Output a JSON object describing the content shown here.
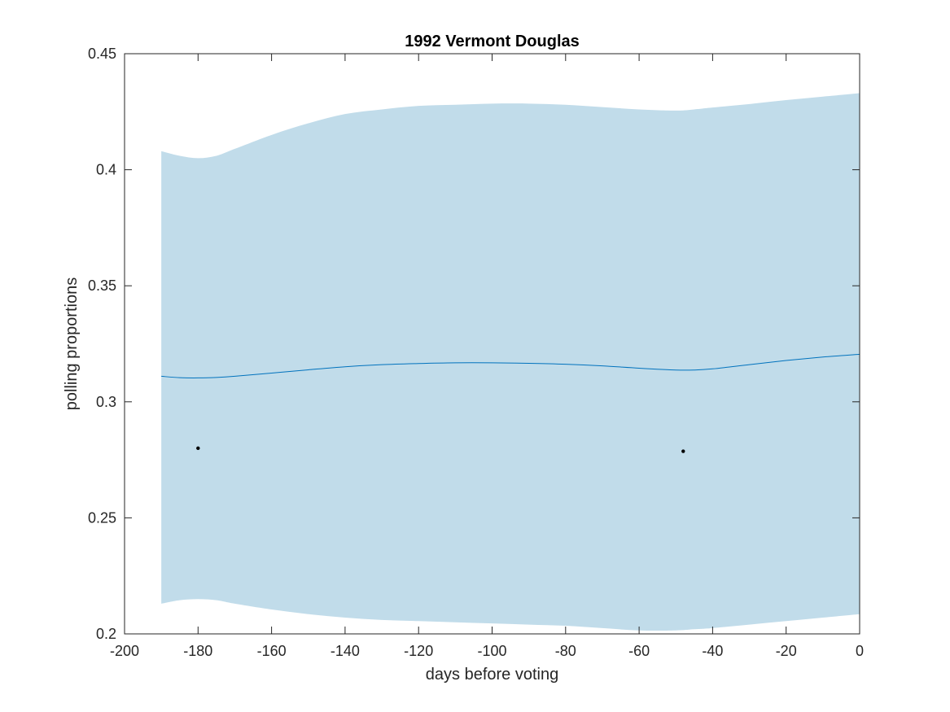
{
  "chart_data": {
    "type": "line",
    "title": "1992 Vermont Douglas",
    "xlabel": "days before voting",
    "ylabel": "polling proportions",
    "xlim": [
      -200,
      0
    ],
    "ylim": [
      0.2,
      0.45
    ],
    "xticks": [
      -200,
      -180,
      -160,
      -140,
      -120,
      -100,
      -80,
      -60,
      -40,
      -20,
      0
    ],
    "xtick_labels": [
      "-200",
      "-180",
      "-160",
      "-140",
      "-120",
      "-100",
      "-80",
      "-60",
      "-40",
      "-20",
      "0"
    ],
    "yticks": [
      0.2,
      0.25,
      0.3,
      0.35,
      0.4,
      0.45
    ],
    "ytick_labels": [
      "0.2",
      "0.25",
      "0.3",
      "0.35",
      "0.4",
      "0.45"
    ],
    "grid": false,
    "colors": {
      "band": "#c1dcea",
      "line": "#0072bd",
      "points": "#000000",
      "axes": "#262626"
    },
    "band": {
      "x": [
        -190,
        -185,
        -180,
        -175,
        -170,
        -160,
        -150,
        -140,
        -130,
        -120,
        -110,
        -100,
        -90,
        -80,
        -70,
        -60,
        -50,
        -45,
        -40,
        -30,
        -20,
        -10,
        0
      ],
      "upper": [
        0.408,
        0.406,
        0.405,
        0.406,
        0.409,
        0.415,
        0.42,
        0.424,
        0.426,
        0.4275,
        0.428,
        0.4285,
        0.4285,
        0.428,
        0.427,
        0.426,
        0.4255,
        0.426,
        0.4268,
        0.4283,
        0.43,
        0.4315,
        0.433
      ],
      "lower": [
        0.213,
        0.2145,
        0.215,
        0.2145,
        0.213,
        0.2105,
        0.2085,
        0.207,
        0.206,
        0.2055,
        0.205,
        0.2045,
        0.204,
        0.2035,
        0.2025,
        0.2015,
        0.2015,
        0.202,
        0.2025,
        0.204,
        0.2055,
        0.207,
        0.2085
      ]
    },
    "series": [
      {
        "x": [
          -190,
          -185,
          -180,
          -175,
          -170,
          -160,
          -150,
          -140,
          -130,
          -120,
          -110,
          -100,
          -90,
          -80,
          -70,
          -60,
          -50,
          -45,
          -40,
          -30,
          -20,
          -10,
          0
        ],
        "y": [
          0.311,
          0.3104,
          0.3103,
          0.3105,
          0.311,
          0.3124,
          0.3138,
          0.3151,
          0.316,
          0.3165,
          0.3168,
          0.3168,
          0.3166,
          0.3162,
          0.3155,
          0.3145,
          0.3137,
          0.3137,
          0.3142,
          0.316,
          0.3178,
          0.3193,
          0.3205
        ]
      }
    ],
    "points": [
      {
        "x": -180,
        "y": 0.28
      },
      {
        "x": -48,
        "y": 0.2787
      }
    ]
  }
}
